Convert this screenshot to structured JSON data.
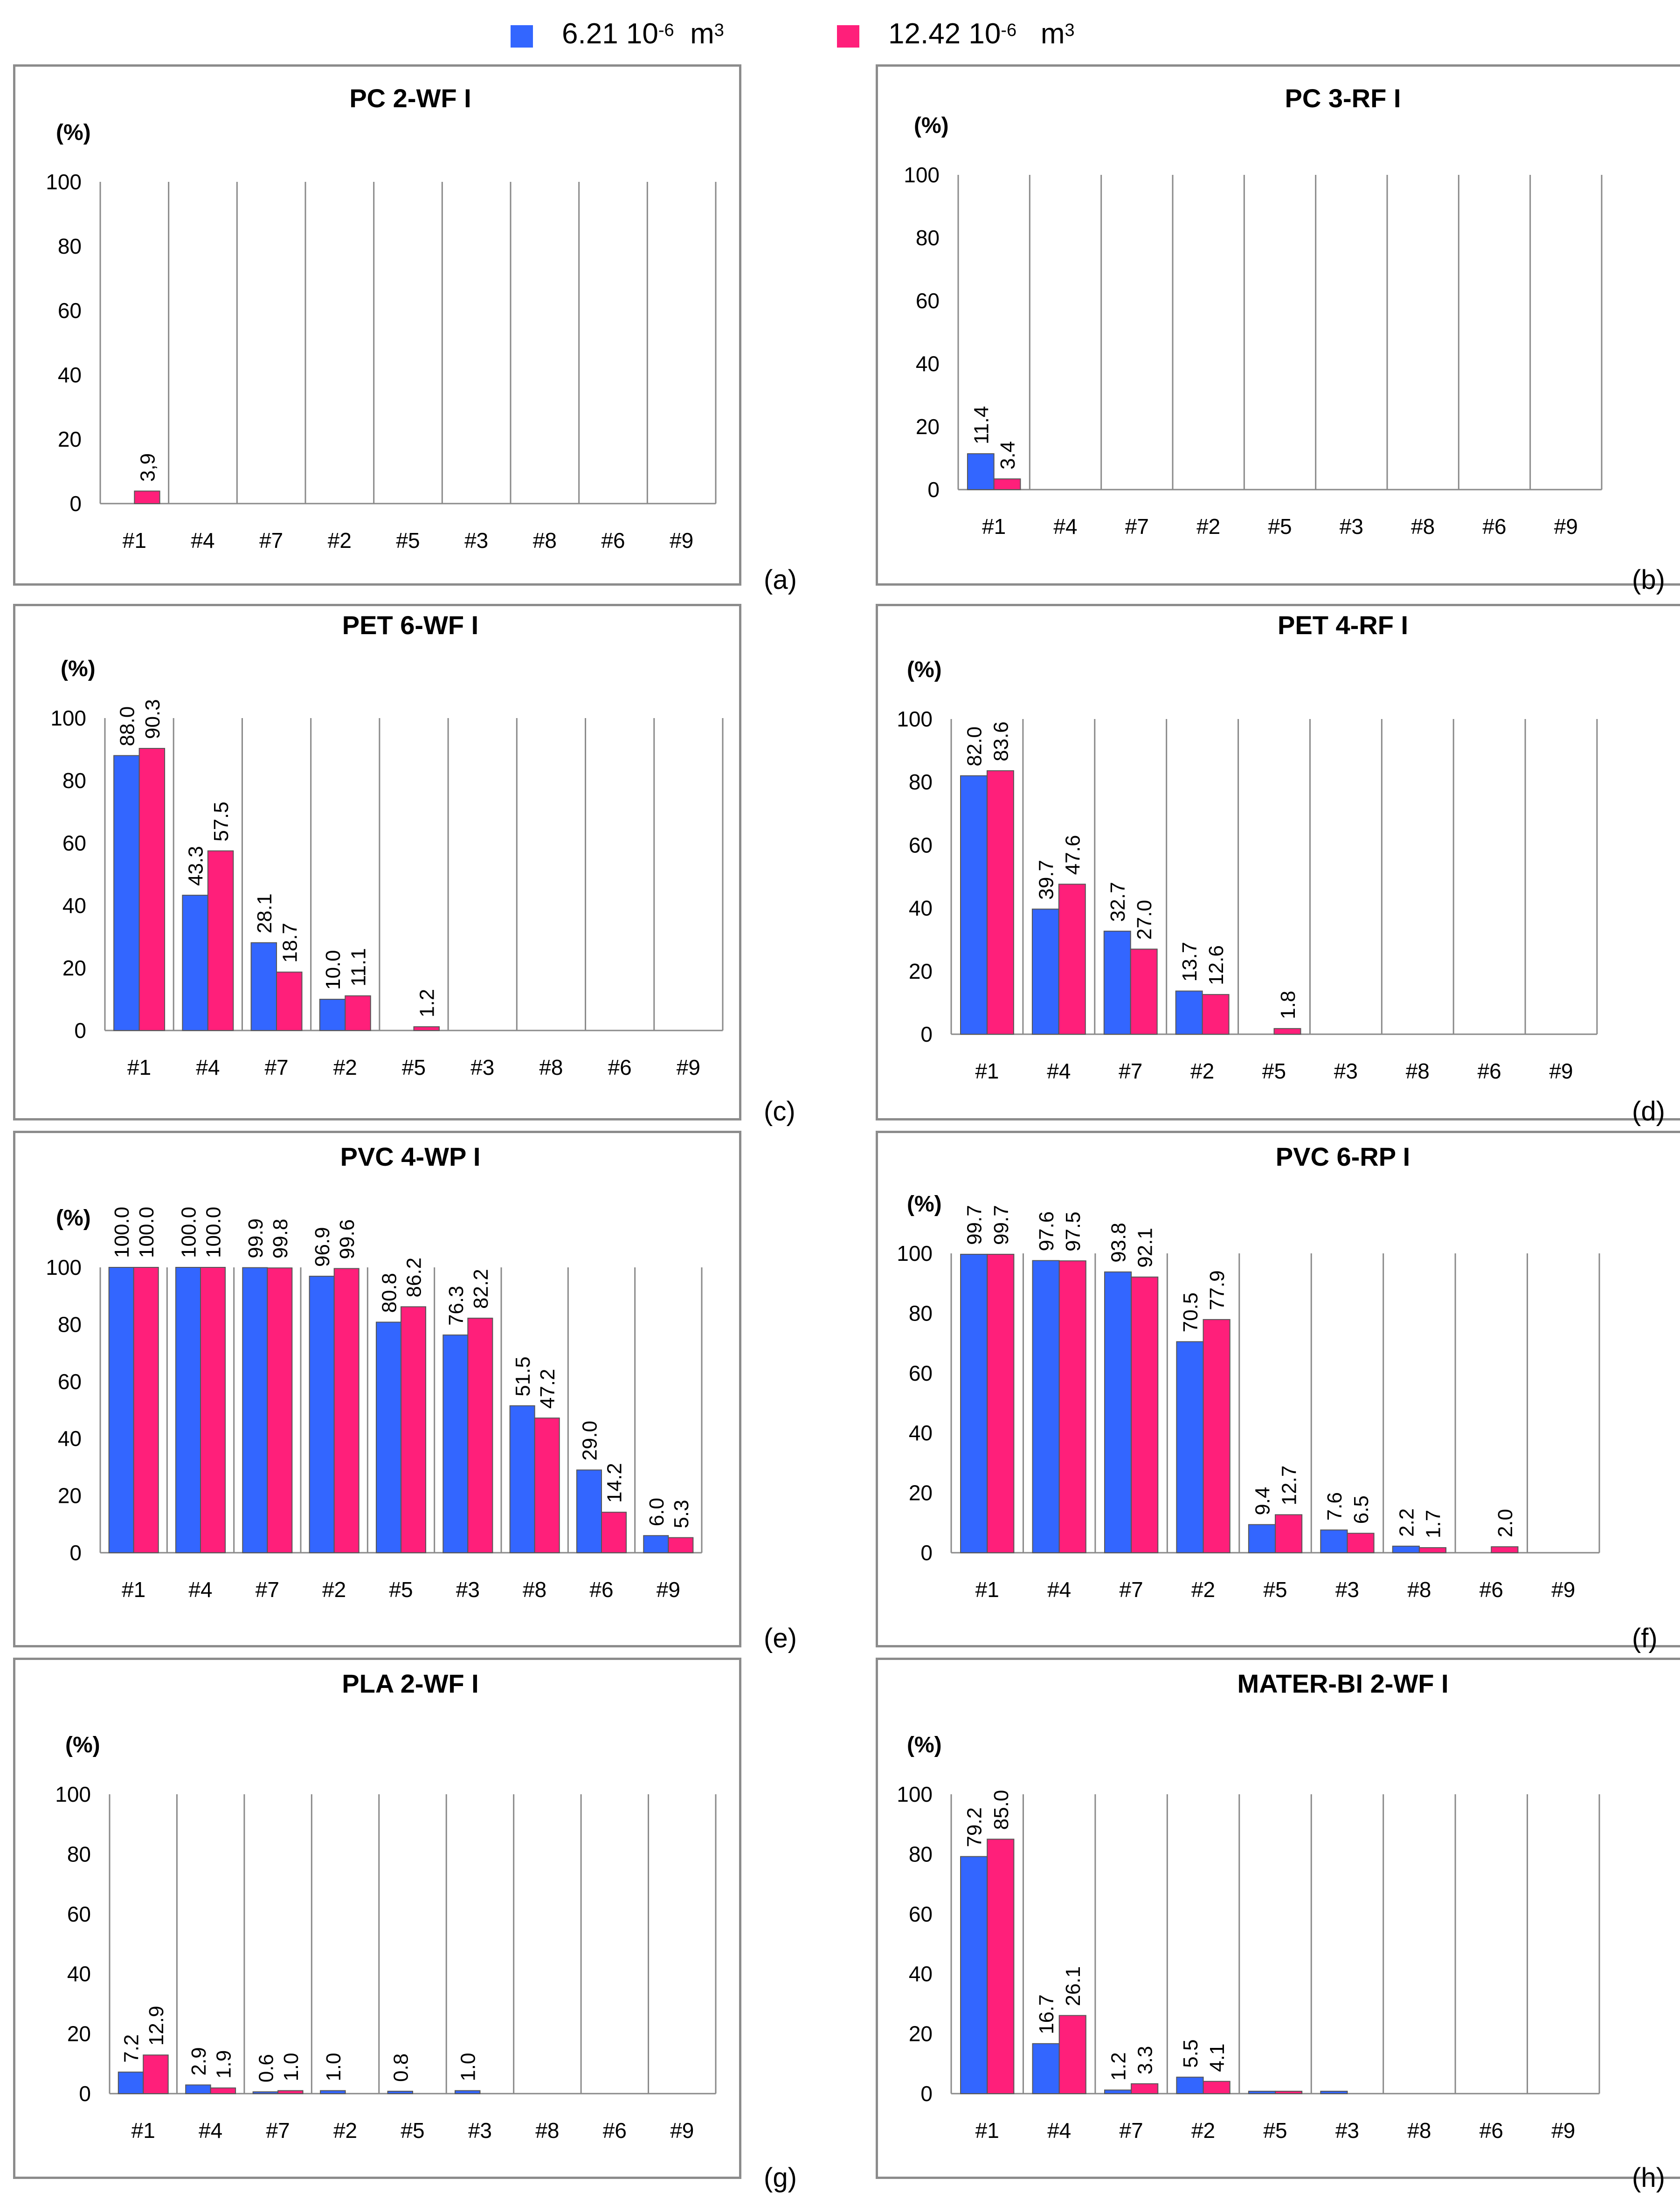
{
  "legend": {
    "series": [
      {
        "base": "6.21 10",
        "exp": "-6",
        "unit": "m",
        "unit_exp": "3",
        "color": "#3366ff"
      },
      {
        "base": "12.42 10",
        "exp": "-6",
        "unit": "m",
        "unit_exp": "3",
        "color": "#ff1f7a"
      }
    ]
  },
  "chart_data": [
    {
      "type": "bar",
      "panel_label": "(a)",
      "title": "PC 2-WF I",
      "ylabel": "(%)",
      "ylim": [
        0,
        100
      ],
      "yticks": [
        "0",
        "20",
        "40",
        "60",
        "80",
        "100"
      ],
      "categories": [
        "#1",
        "#4",
        "#7",
        "#2",
        "#5",
        "#3",
        "#8",
        "#6",
        "#9"
      ],
      "series": [
        {
          "name": "6.21 10^-6 m^3",
          "color": "#3366ff",
          "values": [
            0,
            0,
            0,
            0,
            0,
            0,
            0,
            0,
            0
          ],
          "labels": [
            "",
            "",
            "",
            "",
            "",
            "",
            "",
            "",
            ""
          ]
        },
        {
          "name": "12.42 10^-6 m^3",
          "color": "#ff1f7a",
          "values": [
            3.9,
            0,
            0,
            0,
            0,
            0,
            0,
            0,
            0
          ],
          "labels": [
            "3,9",
            "",
            "",
            "",
            "",
            "",
            "",
            "",
            ""
          ]
        }
      ]
    },
    {
      "type": "bar",
      "panel_label": "(b)",
      "title": "PC 3-RF I",
      "ylabel": "(%)",
      "ylim": [
        0,
        100
      ],
      "yticks": [
        "0",
        "20",
        "40",
        "60",
        "80",
        "100"
      ],
      "categories": [
        "#1",
        "#4",
        "#7",
        "#2",
        "#5",
        "#3",
        "#8",
        "#6",
        "#9"
      ],
      "series": [
        {
          "name": "6.21 10^-6 m^3",
          "color": "#3366ff",
          "values": [
            11.4,
            0,
            0,
            0,
            0,
            0,
            0,
            0,
            0
          ],
          "labels": [
            "11.4",
            "",
            "",
            "",
            "",
            "",
            "",
            "",
            ""
          ]
        },
        {
          "name": "12.42 10^-6 m^3",
          "color": "#ff1f7a",
          "values": [
            3.4,
            0,
            0,
            0,
            0,
            0,
            0,
            0,
            0
          ],
          "labels": [
            "3.4",
            "",
            "",
            "",
            "",
            "",
            "",
            "",
            ""
          ]
        }
      ]
    },
    {
      "type": "bar",
      "panel_label": "(c)",
      "title": "PET 6-WF I",
      "ylabel": "(%)",
      "ylim": [
        0,
        100
      ],
      "yticks": [
        "0",
        "20",
        "40",
        "60",
        "80",
        "100"
      ],
      "categories": [
        "#1",
        "#4",
        "#7",
        "#2",
        "#5",
        "#3",
        "#8",
        "#6",
        "#9"
      ],
      "series": [
        {
          "name": "6.21 10^-6 m^3",
          "color": "#3366ff",
          "values": [
            88.0,
            43.3,
            28.1,
            10.0,
            0,
            0,
            0,
            0,
            0
          ],
          "labels": [
            "88.0",
            "43.3",
            "28.1",
            "10.0",
            "",
            "",
            "",
            "",
            ""
          ]
        },
        {
          "name": "12.42 10^-6 m^3",
          "color": "#ff1f7a",
          "values": [
            90.3,
            57.5,
            18.7,
            11.1,
            1.2,
            0,
            0,
            0,
            0
          ],
          "labels": [
            "90.3",
            "57.5",
            "18.7",
            "11.1",
            "1.2",
            "",
            "",
            "",
            ""
          ]
        }
      ]
    },
    {
      "type": "bar",
      "panel_label": "(d)",
      "title": "PET 4-RF I",
      "ylabel": "(%)",
      "ylim": [
        0,
        100
      ],
      "yticks": [
        "0",
        "20",
        "40",
        "60",
        "80",
        "100"
      ],
      "categories": [
        "#1",
        "#4",
        "#7",
        "#2",
        "#5",
        "#3",
        "#8",
        "#6",
        "#9"
      ],
      "series": [
        {
          "name": "6.21 10^-6 m^3",
          "color": "#3366ff",
          "values": [
            82.0,
            39.7,
            32.7,
            13.7,
            0,
            0,
            0,
            0,
            0
          ],
          "labels": [
            "82.0",
            "39.7",
            "32.7",
            "13.7",
            "",
            "",
            "",
            "",
            ""
          ]
        },
        {
          "name": "12.42 10^-6 m^3",
          "color": "#ff1f7a",
          "values": [
            83.6,
            47.6,
            27.0,
            12.6,
            1.8,
            0,
            0,
            0,
            0
          ],
          "labels": [
            "83.6",
            "47.6",
            "27.0",
            "12.6",
            "1.8",
            "",
            "",
            "",
            ""
          ]
        }
      ]
    },
    {
      "type": "bar",
      "panel_label": "(e)",
      "title": "PVC 4-WP I",
      "ylabel": "(%)",
      "ylim": [
        0,
        100
      ],
      "yticks": [
        "0",
        "20",
        "40",
        "60",
        "80",
        "100"
      ],
      "categories": [
        "#1",
        "#4",
        "#7",
        "#2",
        "#5",
        "#3",
        "#8",
        "#6",
        "#9"
      ],
      "series": [
        {
          "name": "6.21 10^-6 m^3",
          "color": "#3366ff",
          "values": [
            100.0,
            100.0,
            99.9,
            96.9,
            80.8,
            76.3,
            51.5,
            29.0,
            6.0
          ],
          "labels": [
            "100.0",
            "100.0",
            "99.9",
            "96.9",
            "80.8",
            "76.3",
            "51.5",
            "29.0",
            "6.0"
          ]
        },
        {
          "name": "12.42 10^-6 m^3",
          "color": "#ff1f7a",
          "values": [
            100.0,
            100.0,
            99.8,
            99.6,
            86.2,
            82.2,
            47.2,
            14.2,
            5.3
          ],
          "labels": [
            "100.0",
            "100.0",
            "99.8",
            "99.6",
            "86.2",
            "82.2",
            "47.2",
            "14.2",
            "5.3"
          ]
        }
      ]
    },
    {
      "type": "bar",
      "panel_label": "(f)",
      "title": "PVC 6-RP I",
      "ylabel": "(%)",
      "ylim": [
        0,
        100
      ],
      "yticks": [
        "0",
        "20",
        "40",
        "60",
        "80",
        "100"
      ],
      "categories": [
        "#1",
        "#4",
        "#7",
        "#2",
        "#5",
        "#3",
        "#8",
        "#6",
        "#9"
      ],
      "series": [
        {
          "name": "6.21 10^-6 m^3",
          "color": "#3366ff",
          "values": [
            99.7,
            97.6,
            93.8,
            70.5,
            9.4,
            7.6,
            2.2,
            0,
            0
          ],
          "labels": [
            "99.7",
            "97.6",
            "93.8",
            "70.5",
            "9.4",
            "7.6",
            "2.2",
            "",
            ""
          ]
        },
        {
          "name": "12.42 10^-6 m^3",
          "color": "#ff1f7a",
          "values": [
            99.7,
            97.5,
            92.1,
            77.9,
            12.7,
            6.5,
            1.7,
            2.0,
            0
          ],
          "labels": [
            "99.7",
            "97.5",
            "92.1",
            "77.9",
            "12.7",
            "6.5",
            "1.7",
            "2.0",
            ""
          ]
        }
      ]
    },
    {
      "type": "bar",
      "panel_label": "(g)",
      "title": "PLA 2-WF I",
      "ylabel": "(%)",
      "ylim": [
        0,
        100
      ],
      "yticks": [
        "0",
        "20",
        "40",
        "60",
        "80",
        "100"
      ],
      "categories": [
        "#1",
        "#4",
        "#7",
        "#2",
        "#5",
        "#3",
        "#8",
        "#6",
        "#9"
      ],
      "series": [
        {
          "name": "6.21 10^-6 m^3",
          "color": "#3366ff",
          "values": [
            7.2,
            2.9,
            0.6,
            1.0,
            0.8,
            1.0,
            0,
            0,
            0
          ],
          "labels": [
            "7.2",
            "2.9",
            "0.6",
            "1.0",
            "0.8",
            "1.0",
            "",
            "",
            ""
          ]
        },
        {
          "name": "12.42 10^-6 m^3",
          "color": "#ff1f7a",
          "values": [
            12.9,
            1.9,
            1.0,
            0,
            0,
            0,
            0,
            0,
            0
          ],
          "labels": [
            "12.9",
            "1.9",
            "1.0",
            "",
            "",
            "",
            "",
            "",
            ""
          ]
        }
      ]
    },
    {
      "type": "bar",
      "panel_label": "(h)",
      "title": "MATER-BI 2-WF I",
      "ylabel": "(%)",
      "ylim": [
        0,
        100
      ],
      "yticks": [
        "0",
        "20",
        "40",
        "60",
        "80",
        "100"
      ],
      "categories": [
        "#1",
        "#4",
        "#7",
        "#2",
        "#5",
        "#3",
        "#8",
        "#6",
        "#9"
      ],
      "series": [
        {
          "name": "6.21 10^-6 m^3",
          "color": "#3366ff",
          "values": [
            79.2,
            16.7,
            1.2,
            5.5,
            0.8,
            0.8,
            0,
            0,
            0
          ],
          "labels": [
            "79.2",
            "16.7",
            "1.2",
            "5.5",
            "",
            "",
            "",
            "",
            ""
          ]
        },
        {
          "name": "12.42 10^-6 m^3",
          "color": "#ff1f7a",
          "values": [
            85.0,
            26.1,
            3.3,
            4.1,
            0.8,
            0,
            0,
            0,
            0
          ],
          "labels": [
            "85.0",
            "26.1",
            "3.3",
            "4.1",
            "",
            "",
            "",
            "",
            ""
          ]
        }
      ]
    }
  ]
}
